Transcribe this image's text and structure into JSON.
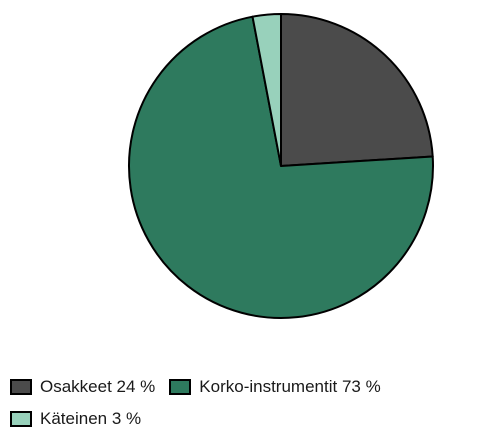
{
  "chart_data": {
    "type": "pie",
    "title": "",
    "slices": [
      {
        "label": "Osakkeet",
        "value": 24,
        "display": "Osakkeet 24 %",
        "color": "#4b4b4b"
      },
      {
        "label": "Korko-instrumentit",
        "value": 73,
        "display": "Korko-instrumentit 73 %",
        "color": "#2e7a5e"
      },
      {
        "label": "Käteinen",
        "value": 3,
        "display": "Käteinen 3 %",
        "color": "#98d1bb"
      }
    ],
    "start_angle": "12 o'clock",
    "direction": "clockwise",
    "legend_position": "bottom"
  }
}
